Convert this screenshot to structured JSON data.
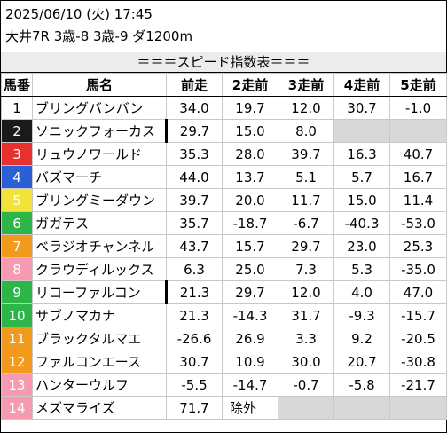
{
  "header": {
    "datetime": "2025/06/10 (火) 17:45",
    "race_info": "大井7R 3歳-8 3歳-9 ダ1200m"
  },
  "table_title": "＝＝＝スピード指数表＝＝＝",
  "columns": [
    "馬番",
    "馬名",
    "前走",
    "2走前",
    "3走前",
    "4走前",
    "5走前"
  ],
  "rows": [
    {
      "num": "1",
      "name": "ブリングバンバン",
      "bg": "#ffffff",
      "fg": "#000000",
      "vals": [
        "34.0",
        "19.7",
        "12.0",
        "30.7",
        "-1.0"
      ]
    },
    {
      "num": "2",
      "name": "ソニックフォーカス",
      "bg": "#1a1a1a",
      "fg": "#ffffff",
      "vals": [
        "29.7",
        "15.0",
        "8.0",
        "",
        ""
      ]
    },
    {
      "num": "3",
      "name": "リュウノワールド",
      "bg": "#e8312e",
      "fg": "#ffffff",
      "vals": [
        "35.3",
        "28.0",
        "39.7",
        "16.3",
        "40.7"
      ]
    },
    {
      "num": "4",
      "name": "バズマーチ",
      "bg": "#2b5fd6",
      "fg": "#ffffff",
      "vals": [
        "44.0",
        "13.7",
        "5.1",
        "5.7",
        "16.7"
      ]
    },
    {
      "num": "5",
      "name": "ブリングミーダウン",
      "bg": "#f2e23a",
      "fg": "#ffffff",
      "vals": [
        "39.7",
        "20.0",
        "11.7",
        "15.0",
        "11.4"
      ]
    },
    {
      "num": "6",
      "name": "ガガテス",
      "bg": "#2db54a",
      "fg": "#ffffff",
      "vals": [
        "35.7",
        "-18.7",
        "-6.7",
        "-40.3",
        "-53.0"
      ]
    },
    {
      "num": "7",
      "name": "ベラジオチャンネル",
      "bg": "#f29a1e",
      "fg": "#ffffff",
      "vals": [
        "43.7",
        "15.7",
        "29.7",
        "23.0",
        "25.3"
      ]
    },
    {
      "num": "8",
      "name": "クラウディルックス",
      "bg": "#f59ab0",
      "fg": "#ffffff",
      "vals": [
        "6.3",
        "25.0",
        "7.3",
        "5.3",
        "-35.0"
      ]
    },
    {
      "num": "9",
      "name": "リコーファルコン",
      "bg": "#2db54a",
      "fg": "#ffffff",
      "vals": [
        "21.3",
        "29.7",
        "12.0",
        "4.0",
        "47.0"
      ]
    },
    {
      "num": "10",
      "name": "サブノマカナ",
      "bg": "#2db54a",
      "fg": "#ffffff",
      "vals": [
        "21.3",
        "-14.3",
        "31.7",
        "-9.3",
        "-15.7"
      ]
    },
    {
      "num": "11",
      "name": "ブラックタルマエ",
      "bg": "#f29a1e",
      "fg": "#ffffff",
      "vals": [
        "-26.6",
        "26.9",
        "3.3",
        "9.2",
        "-20.5"
      ]
    },
    {
      "num": "12",
      "name": "ファルコンエース",
      "bg": "#f29a1e",
      "fg": "#ffffff",
      "vals": [
        "30.7",
        "10.9",
        "30.0",
        "20.7",
        "-30.8"
      ]
    },
    {
      "num": "13",
      "name": "ハンターウルフ",
      "bg": "#f59ab0",
      "fg": "#ffffff",
      "vals": [
        "-5.5",
        "-14.7",
        "-0.7",
        "-5.8",
        "-21.7"
      ]
    },
    {
      "num": "14",
      "name": "メズマライズ",
      "bg": "#f59ab0",
      "fg": "#ffffff",
      "vals": [
        "71.7",
        "除外",
        "",
        "",
        ""
      ]
    }
  ]
}
